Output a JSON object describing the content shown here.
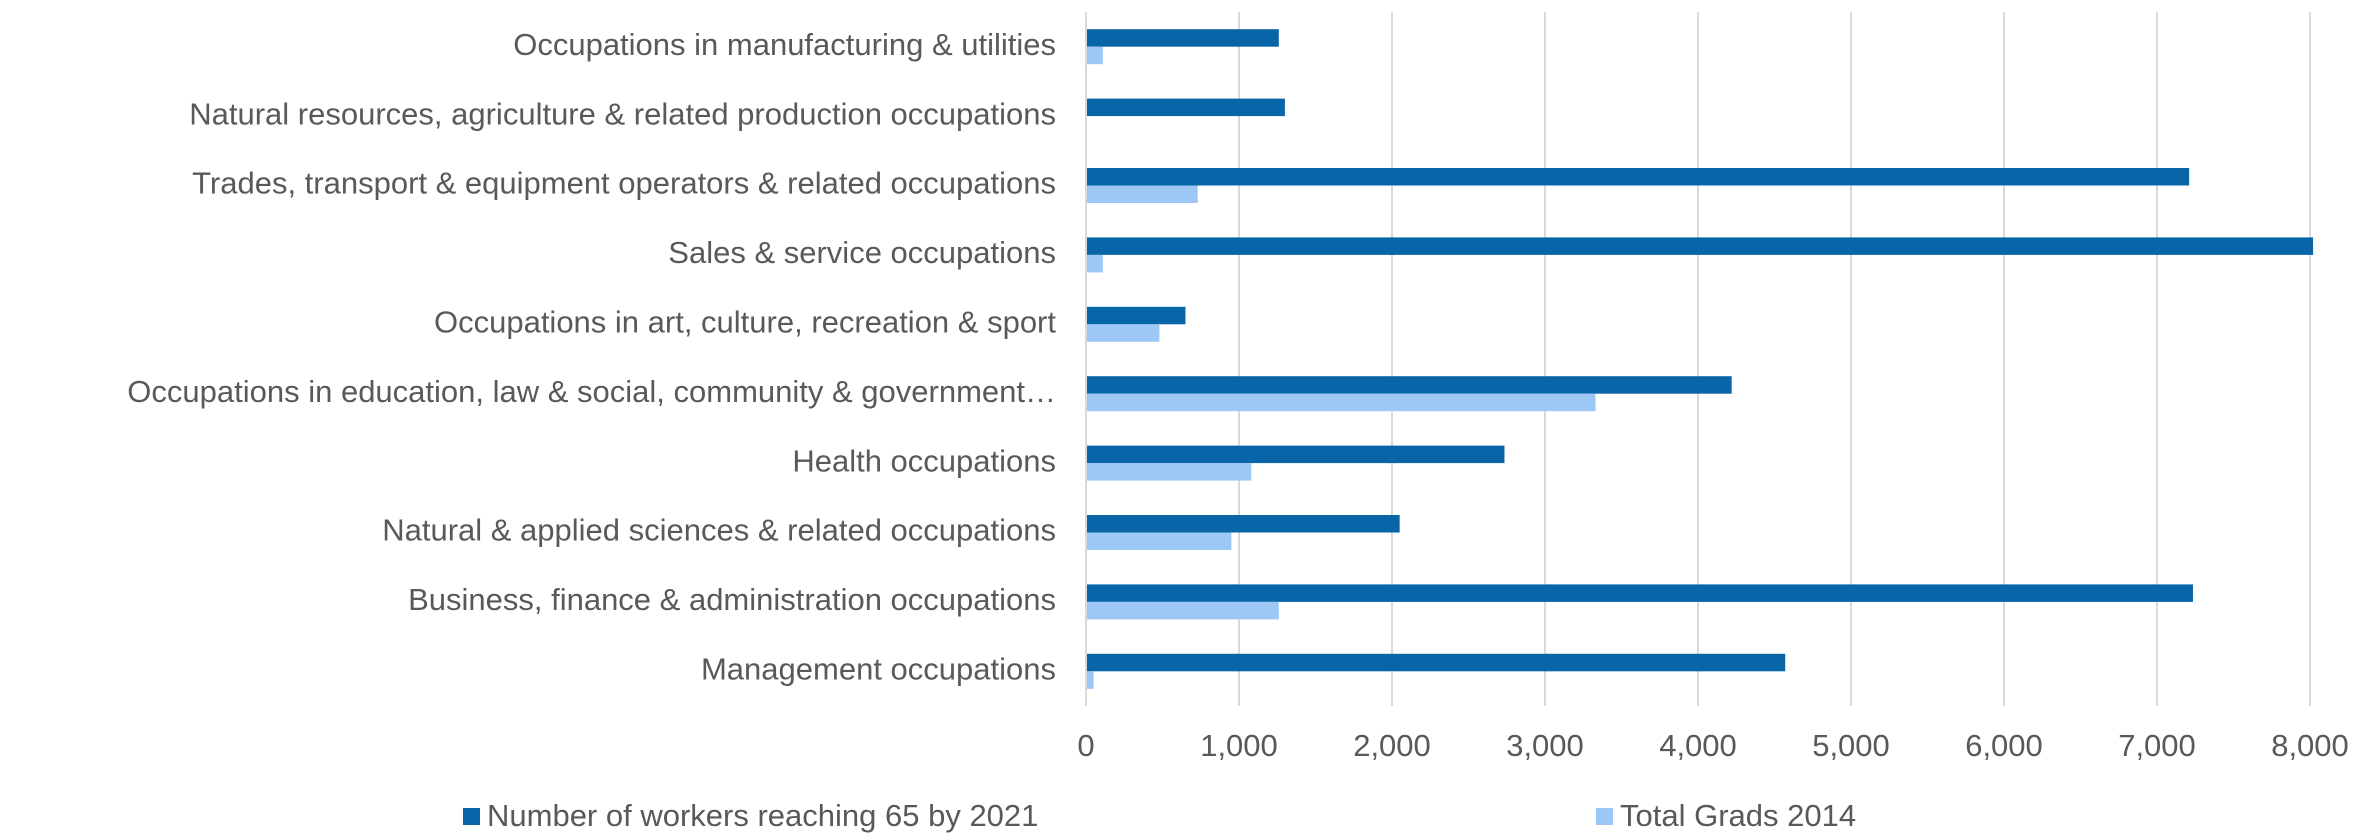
{
  "chart_data": {
    "type": "bar",
    "orientation": "horizontal",
    "categories": [
      "Occupations in manufacturing & utilities",
      "Natural resources, agriculture & related production occupations",
      "Trades, transport & equipment operators & related occupations",
      "Sales & service occupations",
      "Occupations in art, culture, recreation & sport",
      "Occupations in education, law & social, community & government…",
      "Health occupations",
      "Natural & applied sciences & related occupations",
      "Business, finance & administration occupations",
      "Management occupations"
    ],
    "series": [
      {
        "name": "Number of workers reaching 65 by 2021",
        "color": "#0865a8",
        "values": [
          1260,
          1300,
          7210,
          8020,
          650,
          4220,
          2735,
          2050,
          7235,
          4570
        ]
      },
      {
        "name": "Total Grads 2014",
        "color": "#9dc8f5",
        "values": [
          110,
          0,
          730,
          110,
          480,
          3330,
          1080,
          950,
          1260,
          50
        ]
      }
    ],
    "xlim": [
      0,
      8000
    ],
    "xticks": [
      0,
      {
        "value": 1000,
        "label": "1,000"
      },
      {
        "value": 2000,
        "label": "2,000"
      },
      {
        "value": 3000,
        "label": "3,000"
      },
      {
        "value": 4000,
        "label": "4,000"
      },
      {
        "value": 5000,
        "label": "5,000"
      },
      {
        "value": 6000,
        "label": "6,000"
      },
      {
        "value": 7000,
        "label": "7,000"
      },
      {
        "value": 8000,
        "label": "8,000"
      }
    ],
    "grid": true,
    "legend": "bottom"
  }
}
